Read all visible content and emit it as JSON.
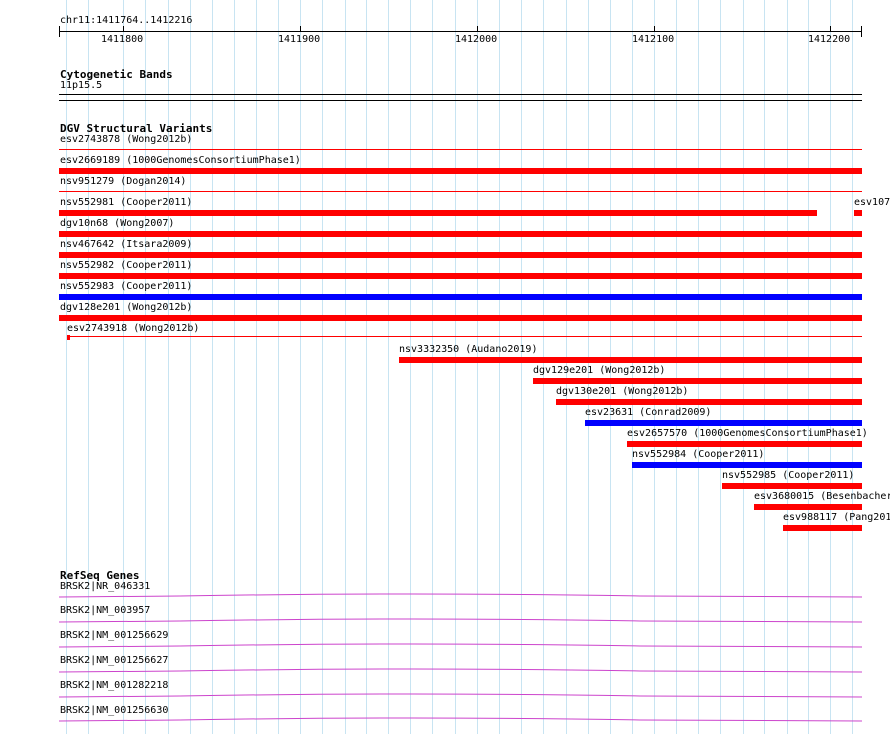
{
  "ruler": {
    "region": "chr11:1411764..1412216",
    "ticks": [
      "1411800",
      "1411900",
      "1412000",
      "1412100",
      "1412200"
    ]
  },
  "cytobands": {
    "title": "Cytogenetic Bands",
    "band": "11p15.5"
  },
  "dgv": {
    "title": "DGV Structural Variants",
    "variants": [
      {
        "label": "esv2743878 (Wong2012b)",
        "color": "#ff0000"
      },
      {
        "label": "esv2669189 (1000GenomesConsortiumPhase1)",
        "color": "#ff0000"
      },
      {
        "label": "nsv951279 (Dogan2014)",
        "color": "#ff0000"
      },
      {
        "label": "nsv552981 (Cooper2011)",
        "color": "#ff0000"
      },
      {
        "label": "esv107",
        "color": "#ff0000"
      },
      {
        "label": "dgv10n68 (Wong2007)",
        "color": "#ff0000"
      },
      {
        "label": "nsv467642 (Itsara2009)",
        "color": "#ff0000"
      },
      {
        "label": "nsv552982 (Cooper2011)",
        "color": "#ff0000"
      },
      {
        "label": "nsv552983 (Cooper2011)",
        "color": "#0000ff"
      },
      {
        "label": "dgv128e201 (Wong2012b)",
        "color": "#ff0000"
      },
      {
        "label": "esv2743918 (Wong2012b)",
        "color": "#ff0000"
      },
      {
        "label": "nsv3332350 (Audano2019)",
        "color": "#ff0000"
      },
      {
        "label": "dgv129e201 (Wong2012b)",
        "color": "#ff0000"
      },
      {
        "label": "dgv130e201 (Wong2012b)",
        "color": "#ff0000"
      },
      {
        "label": "esv23631 (Conrad2009)",
        "color": "#0000ff"
      },
      {
        "label": "esv2657570 (1000GenomesConsortiumPhase1)",
        "color": "#ff0000"
      },
      {
        "label": "nsv552984 (Cooper2011)",
        "color": "#0000ff"
      },
      {
        "label": "nsv552985 (Cooper2011)",
        "color": "#ff0000"
      },
      {
        "label": "esv3680015 (Besenbacher",
        "color": "#ff0000"
      },
      {
        "label": "esv988117 (Pang201",
        "color": "#ff0000"
      }
    ]
  },
  "refseq": {
    "title": "RefSeq Genes",
    "genes": [
      {
        "label": "BRSK2|NR_046331"
      },
      {
        "label": "BRSK2|NM_003957"
      },
      {
        "label": "BRSK2|NM_001256629"
      },
      {
        "label": "BRSK2|NM_001256627"
      },
      {
        "label": "BRSK2|NM_001282218"
      },
      {
        "label": "BRSK2|NM_001256630"
      }
    ],
    "color": "#cc44cc"
  },
  "colors": {
    "grid": "#c8e4f2",
    "red": "#ff0000",
    "blue": "#0000ff",
    "gene": "#cc44cc"
  }
}
